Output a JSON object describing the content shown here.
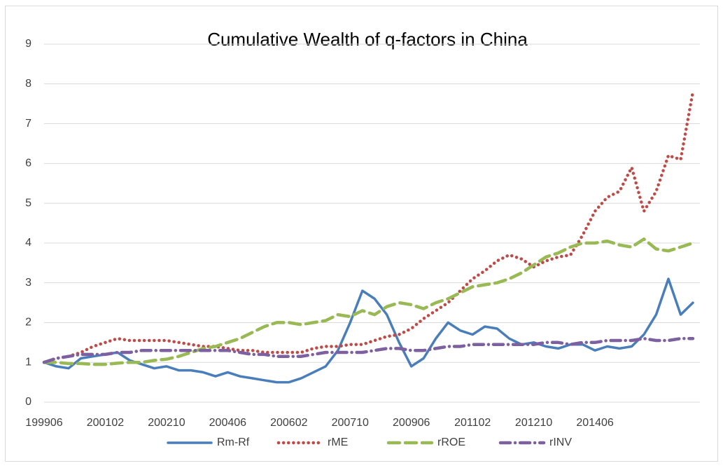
{
  "chart_data": {
    "type": "line",
    "title": "Cumulative Wealth of q-factors in China",
    "categories": [
      "199906",
      null,
      null,
      null,
      null,
      "200102",
      null,
      null,
      null,
      null,
      "200210",
      null,
      null,
      null,
      null,
      "200406",
      null,
      null,
      null,
      null,
      "200602",
      null,
      null,
      null,
      null,
      "200710",
      null,
      null,
      null,
      null,
      "200906",
      null,
      null,
      null,
      null,
      "201102",
      null,
      null,
      null,
      null,
      "201210",
      null,
      null,
      null,
      null,
      "201406",
      null,
      null,
      null,
      null,
      null,
      null,
      null,
      null
    ],
    "series": [
      {
        "name": "Rm-Rf",
        "color": "#4a7ebb",
        "dash": "solid",
        "values": [
          1.0,
          0.9,
          0.85,
          1.1,
          1.15,
          1.2,
          1.25,
          1.05,
          0.95,
          0.85,
          0.9,
          0.8,
          0.8,
          0.75,
          0.65,
          0.75,
          0.65,
          0.6,
          0.55,
          0.5,
          0.5,
          0.6,
          0.75,
          0.9,
          1.3,
          2.0,
          2.8,
          2.6,
          2.2,
          1.5,
          0.9,
          1.1,
          1.6,
          2.0,
          1.8,
          1.7,
          1.9,
          1.85,
          1.6,
          1.45,
          1.5,
          1.4,
          1.35,
          1.45,
          1.45,
          1.3,
          1.4,
          1.35,
          1.4,
          1.7,
          2.2,
          3.1,
          2.2,
          2.5
        ]
      },
      {
        "name": "rME",
        "color": "#be4b48",
        "dash": "dot",
        "values": [
          1.0,
          1.1,
          1.15,
          1.25,
          1.4,
          1.5,
          1.6,
          1.55,
          1.55,
          1.55,
          1.55,
          1.5,
          1.45,
          1.4,
          1.4,
          1.35,
          1.3,
          1.3,
          1.25,
          1.25,
          1.25,
          1.25,
          1.35,
          1.4,
          1.4,
          1.45,
          1.45,
          1.55,
          1.65,
          1.7,
          1.85,
          2.1,
          2.3,
          2.5,
          2.8,
          3.1,
          3.3,
          3.55,
          3.7,
          3.6,
          3.4,
          3.55,
          3.65,
          3.7,
          4.2,
          4.8,
          5.15,
          5.3,
          5.9,
          4.8,
          5.3,
          6.2,
          6.1,
          7.8
        ]
      },
      {
        "name": "rROE",
        "color": "#98b954",
        "dash": "dash",
        "values": [
          1.0,
          1.0,
          0.97,
          0.97,
          0.95,
          0.95,
          0.98,
          1.0,
          1.0,
          1.05,
          1.08,
          1.15,
          1.25,
          1.35,
          1.4,
          1.5,
          1.6,
          1.75,
          1.9,
          2.0,
          2.0,
          1.95,
          2.0,
          2.05,
          2.2,
          2.15,
          2.3,
          2.2,
          2.4,
          2.5,
          2.45,
          2.35,
          2.5,
          2.6,
          2.75,
          2.9,
          2.95,
          3.0,
          3.1,
          3.25,
          3.45,
          3.65,
          3.75,
          3.9,
          4.0,
          4.0,
          4.05,
          3.95,
          3.9,
          4.1,
          3.85,
          3.8,
          3.9,
          4.0
        ]
      },
      {
        "name": "rINV",
        "color": "#7d60a0",
        "dash": "dashdot",
        "values": [
          1.0,
          1.1,
          1.15,
          1.2,
          1.2,
          1.2,
          1.25,
          1.25,
          1.3,
          1.3,
          1.3,
          1.3,
          1.3,
          1.3,
          1.3,
          1.3,
          1.25,
          1.2,
          1.2,
          1.15,
          1.15,
          1.15,
          1.2,
          1.25,
          1.25,
          1.25,
          1.25,
          1.3,
          1.35,
          1.35,
          1.3,
          1.3,
          1.35,
          1.4,
          1.4,
          1.45,
          1.45,
          1.45,
          1.45,
          1.45,
          1.45,
          1.5,
          1.5,
          1.45,
          1.5,
          1.5,
          1.55,
          1.55,
          1.55,
          1.6,
          1.55,
          1.55,
          1.6,
          1.6
        ]
      }
    ],
    "ylim": [
      0,
      9
    ],
    "yticks": [
      0,
      1,
      2,
      3,
      4,
      5,
      6,
      7,
      8,
      9
    ],
    "grid": true,
    "legend": "bottom"
  }
}
